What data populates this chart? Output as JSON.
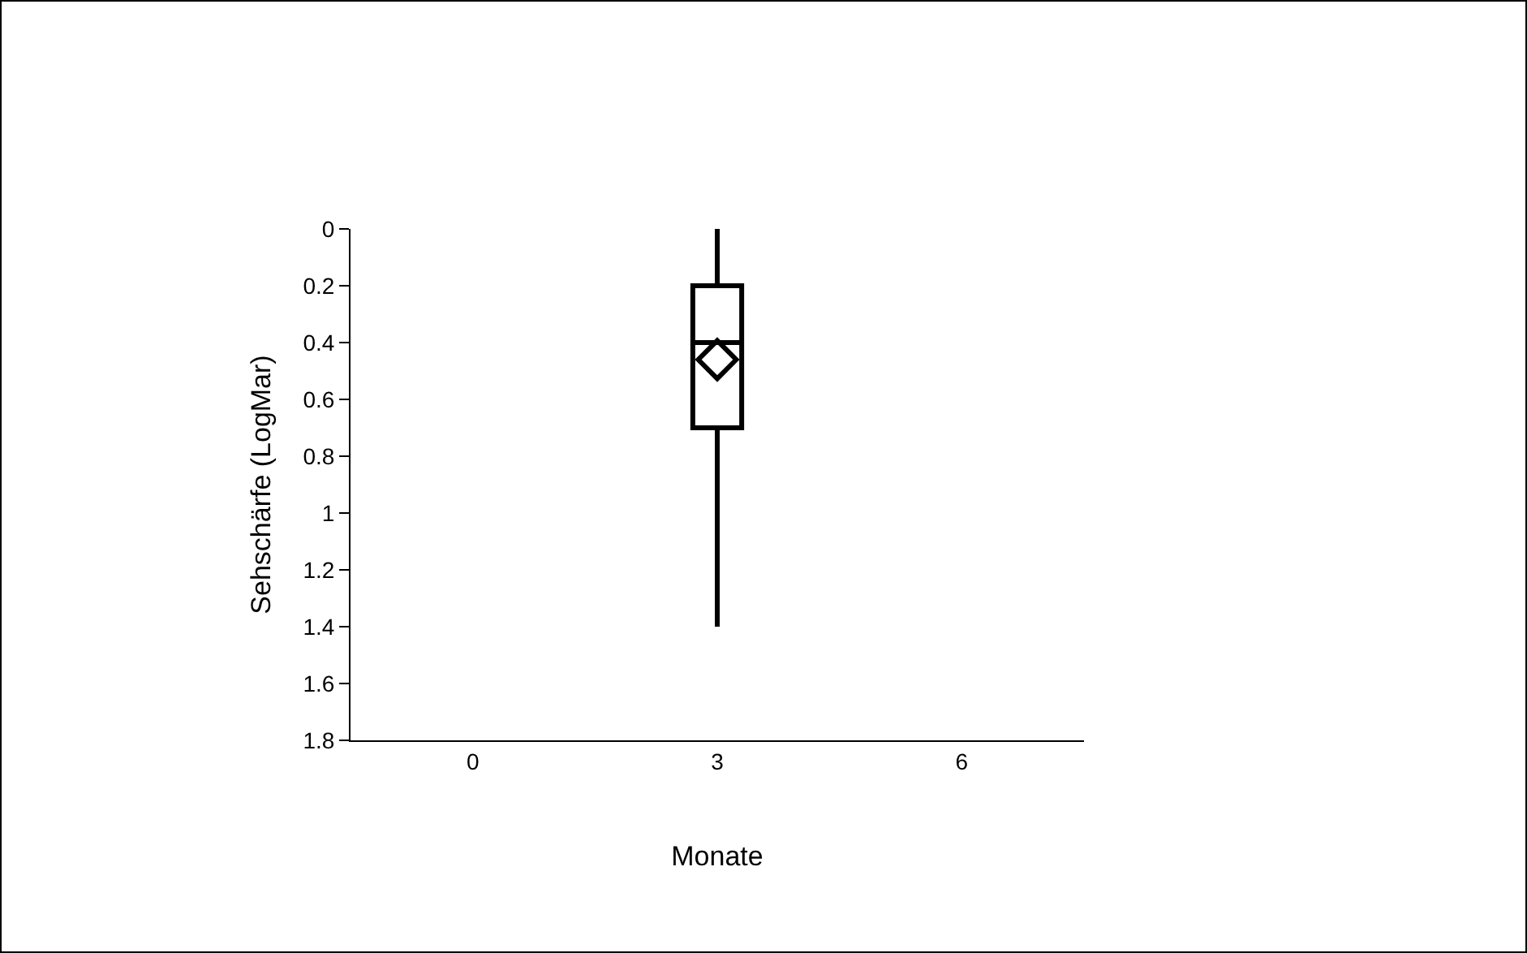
{
  "chart_data": {
    "type": "box",
    "xlabel": "Monate",
    "ylabel": "Sehschärfe (LogMar)",
    "categories": [
      "0",
      "3",
      "6"
    ],
    "boxes": [
      null,
      {
        "low": 0,
        "q1": 0.2,
        "median": 0.4,
        "q3": 0.7,
        "high": 1.4,
        "mean": 0.46
      },
      null
    ],
    "color": "#000000",
    "ylim": [
      1.8,
      0
    ],
    "yticks": [
      0,
      0.2,
      0.4,
      0.6,
      0.8,
      1,
      1.2,
      1.4,
      1.6,
      1.8
    ],
    "grid": false
  }
}
